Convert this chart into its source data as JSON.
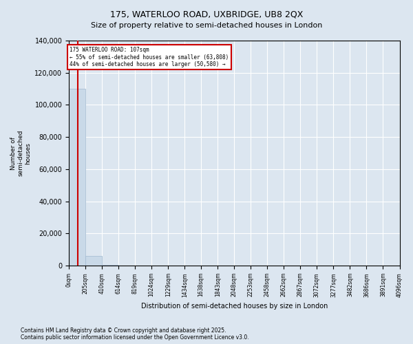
{
  "title": "175, WATERLOO ROAD, UXBRIDGE, UB8 2QX",
  "subtitle": "Size of property relative to semi-detached houses in London",
  "xlabel": "Distribution of semi-detached houses by size in London",
  "ylabel": "Number of\nsemi-detached\nhouses",
  "property_size": 107,
  "property_label": "175 WATERLOO ROAD: 107sqm",
  "smaller_pct": 55,
  "smaller_count": 63808,
  "larger_pct": 44,
  "larger_count": 50580,
  "bin_edges": [
    0,
    205,
    410,
    614,
    819,
    1024,
    1229,
    1434,
    1638,
    1843,
    2048,
    2253,
    2458,
    2662,
    2867,
    3072,
    3277,
    3482,
    3686,
    3891,
    4096
  ],
  "bar_heights": [
    110000,
    6000,
    500,
    200,
    100,
    60,
    40,
    30,
    20,
    15,
    10,
    8,
    6,
    5,
    4,
    3,
    3,
    2,
    2,
    1
  ],
  "bar_color": "#c9d9e8",
  "bar_edgecolor": "#a0b8d0",
  "red_line_color": "#cc0000",
  "annotation_box_color": "#cc0000",
  "background_color": "#dce6f0",
  "plot_bg_color": "#dce6f0",
  "footer": "Contains HM Land Registry data © Crown copyright and database right 2025.\nContains public sector information licensed under the Open Government Licence v3.0.",
  "ylim": [
    0,
    140000
  ],
  "yticks": [
    0,
    20000,
    40000,
    60000,
    80000,
    100000,
    120000,
    140000
  ]
}
